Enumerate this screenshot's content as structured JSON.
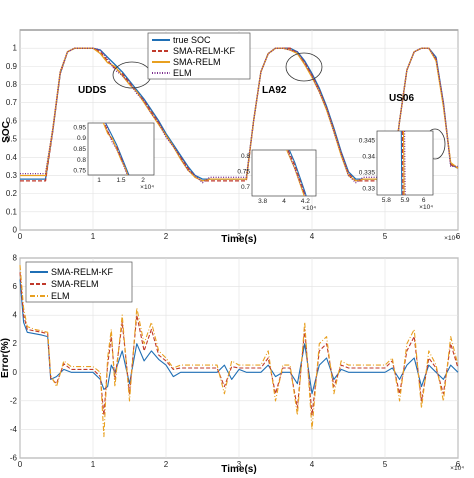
{
  "chart_data": [
    {
      "type": "line",
      "title": "",
      "xlabel": "Time(s)",
      "ylabel": "SOC",
      "x_multiplier": "×10⁴",
      "xlim": [
        0,
        6
      ],
      "ylim": [
        0,
        1.1
      ],
      "xticks": [
        "0",
        "1",
        "2",
        "3",
        "4",
        "5",
        "6"
      ],
      "yticks": [
        "0",
        "0.1",
        "0.2",
        "0.3",
        "0.4",
        "0.5",
        "0.6",
        "0.7",
        "0.8",
        "0.9",
        "1"
      ],
      "grid": true,
      "legend_position": "top-center",
      "series": [
        {
          "name": "true SOC",
          "color": "#1f6fb5",
          "style": "solid",
          "x": [
            0,
            0.2,
            0.35,
            0.45,
            0.55,
            0.65,
            0.75,
            0.85,
            0.95,
            1.0,
            1.1,
            1.2,
            1.3,
            1.4,
            1.5,
            1.6,
            1.7,
            1.8,
            1.9,
            2.0,
            2.1,
            2.2,
            2.3,
            2.4,
            2.5,
            2.6,
            2.7,
            2.8,
            2.95,
            3.1,
            3.2,
            3.3,
            3.4,
            3.5,
            3.6,
            3.7,
            3.8,
            3.9,
            4.0,
            4.1,
            4.2,
            4.3,
            4.4,
            4.5,
            4.6,
            4.7,
            4.8,
            4.9,
            5.0,
            5.1,
            5.2,
            5.3,
            5.4,
            5.5,
            5.6,
            5.7,
            5.8,
            5.9,
            6.0
          ],
          "y": [
            0.28,
            0.28,
            0.28,
            0.55,
            0.86,
            0.98,
            1.0,
            1.0,
            1.0,
            1.0,
            0.99,
            0.95,
            0.91,
            0.87,
            0.82,
            0.77,
            0.72,
            0.66,
            0.6,
            0.53,
            0.47,
            0.41,
            0.35,
            0.3,
            0.28,
            0.28,
            0.28,
            0.28,
            0.28,
            0.28,
            0.6,
            0.87,
            0.97,
            1.0,
            1.0,
            1.0,
            0.98,
            0.93,
            0.86,
            0.78,
            0.68,
            0.56,
            0.43,
            0.32,
            0.28,
            0.28,
            0.28,
            0.28,
            0.28,
            0.28,
            0.6,
            0.88,
            0.98,
            1.0,
            1.0,
            0.95,
            0.7,
            0.36,
            0.34
          ]
        },
        {
          "name": "SMA-RELM-KF",
          "color": "#c0392b",
          "style": "dashed",
          "x": [
            0,
            0.2,
            0.35,
            0.45,
            0.55,
            0.65,
            0.75,
            0.85,
            0.95,
            1.0,
            1.1,
            1.2,
            1.3,
            1.4,
            1.5,
            1.6,
            1.7,
            1.8,
            1.9,
            2.0,
            2.1,
            2.2,
            2.3,
            2.4,
            2.5,
            2.6,
            2.7,
            2.8,
            2.95,
            3.1,
            3.2,
            3.3,
            3.4,
            3.5,
            3.6,
            3.7,
            3.8,
            3.9,
            4.0,
            4.1,
            4.2,
            4.3,
            4.4,
            4.5,
            4.6,
            4.7,
            4.8,
            4.9,
            5.0,
            5.1,
            5.2,
            5.3,
            5.4,
            5.5,
            5.6,
            5.7,
            5.8,
            5.9,
            6.0
          ],
          "y": [
            0.27,
            0.27,
            0.27,
            0.55,
            0.86,
            0.98,
            1.0,
            1.0,
            1.0,
            1.0,
            0.98,
            0.93,
            0.89,
            0.86,
            0.81,
            0.76,
            0.71,
            0.65,
            0.59,
            0.52,
            0.46,
            0.4,
            0.34,
            0.29,
            0.27,
            0.27,
            0.27,
            0.27,
            0.27,
            0.27,
            0.6,
            0.87,
            0.97,
            1.0,
            1.0,
            1.0,
            0.97,
            0.92,
            0.85,
            0.77,
            0.67,
            0.55,
            0.42,
            0.31,
            0.27,
            0.27,
            0.27,
            0.27,
            0.27,
            0.27,
            0.6,
            0.88,
            0.98,
            1.0,
            1.0,
            0.94,
            0.69,
            0.36,
            0.34
          ]
        },
        {
          "name": "SMA-RELM",
          "color": "#e8a020",
          "style": "solid",
          "x": [
            0,
            0.2,
            0.35,
            0.45,
            0.55,
            0.65,
            0.75,
            0.85,
            0.95,
            1.0,
            1.1,
            1.2,
            1.3,
            1.4,
            1.5,
            1.6,
            1.7,
            1.8,
            1.9,
            2.0,
            2.1,
            2.2,
            2.3,
            2.4,
            2.5,
            2.6,
            2.7,
            2.8,
            2.95,
            3.1,
            3.2,
            3.3,
            3.4,
            3.5,
            3.6,
            3.7,
            3.8,
            3.9,
            4.0,
            4.1,
            4.2,
            4.3,
            4.4,
            4.5,
            4.6,
            4.7,
            4.8,
            4.9,
            5.0,
            5.1,
            5.2,
            5.3,
            5.4,
            5.5,
            5.6,
            5.7,
            5.8,
            5.9,
            6.0
          ],
          "y": [
            0.3,
            0.3,
            0.3,
            0.56,
            0.87,
            0.98,
            1.0,
            1.0,
            1.0,
            1.0,
            0.97,
            0.92,
            0.9,
            0.85,
            0.8,
            0.76,
            0.7,
            0.64,
            0.58,
            0.52,
            0.46,
            0.39,
            0.33,
            0.29,
            0.27,
            0.28,
            0.28,
            0.28,
            0.28,
            0.28,
            0.6,
            0.87,
            0.97,
            1.0,
            1.0,
            0.99,
            0.97,
            0.91,
            0.84,
            0.76,
            0.66,
            0.54,
            0.41,
            0.3,
            0.27,
            0.28,
            0.28,
            0.28,
            0.28,
            0.28,
            0.6,
            0.88,
            0.98,
            1.0,
            1.0,
            0.93,
            0.68,
            0.37,
            0.34
          ]
        },
        {
          "name": "ELM",
          "color": "#7b2d8e",
          "style": "dotted",
          "x": [
            0,
            0.2,
            0.35,
            0.45,
            0.55,
            0.65,
            0.75,
            0.85,
            0.95,
            1.0,
            1.1,
            1.2,
            1.3,
            1.4,
            1.5,
            1.6,
            1.7,
            1.8,
            1.9,
            2.0,
            2.1,
            2.2,
            2.3,
            2.4,
            2.5,
            2.6,
            2.7,
            2.8,
            2.95,
            3.1,
            3.2,
            3.3,
            3.4,
            3.5,
            3.6,
            3.7,
            3.8,
            3.9,
            4.0,
            4.1,
            4.2,
            4.3,
            4.4,
            4.5,
            4.6,
            4.7,
            4.8,
            4.9,
            5.0,
            5.1,
            5.2,
            5.3,
            5.4,
            5.5,
            5.6,
            5.7,
            5.8,
            5.9,
            6.0
          ],
          "y": [
            0.31,
            0.31,
            0.31,
            0.56,
            0.87,
            0.98,
            1.0,
            1.0,
            1.0,
            1.0,
            0.99,
            0.94,
            0.88,
            0.85,
            0.81,
            0.75,
            0.71,
            0.64,
            0.59,
            0.51,
            0.46,
            0.4,
            0.33,
            0.3,
            0.26,
            0.29,
            0.29,
            0.29,
            0.29,
            0.29,
            0.6,
            0.87,
            0.97,
            1.0,
            1.0,
            0.99,
            0.98,
            0.92,
            0.85,
            0.76,
            0.67,
            0.54,
            0.42,
            0.3,
            0.26,
            0.29,
            0.29,
            0.29,
            0.29,
            0.29,
            0.6,
            0.88,
            0.98,
            1.0,
            1.0,
            0.94,
            0.7,
            0.35,
            0.35
          ]
        }
      ],
      "annotations": [
        "UDDS",
        "LA92",
        "US06"
      ],
      "insets": [
        {
          "xticks": [
            "1",
            "1.5",
            "2"
          ],
          "yticks": [
            "0.75",
            "0.8",
            "0.85",
            "0.9",
            "0.95"
          ],
          "x_multiplier": "×10⁴",
          "xlim": [
            0.75,
            2.25
          ],
          "ylim": [
            0.73,
            0.97
          ]
        },
        {
          "xticks": [
            "3.8",
            "4",
            "4.2"
          ],
          "yticks": [
            "0.7",
            "0.75",
            "0.8"
          ],
          "x_multiplier": "×10⁴",
          "xlim": [
            3.7,
            4.3
          ],
          "ylim": [
            0.67,
            0.82
          ]
        },
        {
          "xticks": [
            "5.8",
            "5.9",
            "6"
          ],
          "yticks": [
            "0.33",
            "0.335",
            "0.34",
            "0.345"
          ],
          "x_multiplier": "×10⁴",
          "xlim": [
            5.75,
            6.05
          ],
          "ylim": [
            0.328,
            0.348
          ]
        }
      ]
    },
    {
      "type": "line",
      "title": "",
      "xlabel": "Time(s)",
      "ylabel": "Error(%)",
      "x_multiplier": "×10⁴",
      "xlim": [
        0,
        6
      ],
      "ylim": [
        -6,
        8
      ],
      "xticks": [
        "0",
        "1",
        "2",
        "3",
        "4",
        "5",
        "6"
      ],
      "yticks": [
        "-6",
        "-4",
        "-2",
        "0",
        "2",
        "4",
        "6",
        "8"
      ],
      "grid": true,
      "legend_position": "top-left",
      "series": [
        {
          "name": "SMA-RELM-KF",
          "color": "#1f6fb5",
          "style": "solid",
          "x": [
            0,
            0.05,
            0.1,
            0.2,
            0.3,
            0.38,
            0.42,
            0.5,
            0.6,
            0.7,
            0.8,
            0.9,
            1.0,
            1.1,
            1.15,
            1.2,
            1.25,
            1.3,
            1.4,
            1.5,
            1.6,
            1.7,
            1.8,
            1.9,
            2.0,
            2.1,
            2.2,
            2.3,
            2.4,
            2.5,
            2.6,
            2.7,
            2.8,
            2.9,
            3.0,
            3.1,
            3.2,
            3.3,
            3.4,
            3.5,
            3.6,
            3.7,
            3.8,
            3.9,
            4.0,
            4.1,
            4.2,
            4.3,
            4.4,
            4.5,
            4.6,
            4.7,
            4.8,
            4.9,
            5.0,
            5.1,
            5.2,
            5.3,
            5.4,
            5.5,
            5.6,
            5.7,
            5.8,
            5.9,
            6.0
          ],
          "y": [
            6.5,
            3.5,
            2.8,
            2.7,
            2.6,
            2.5,
            -0.5,
            -0.3,
            0.2,
            0.0,
            0.0,
            0.0,
            0.0,
            -0.5,
            -1.2,
            -1.0,
            0.5,
            0.0,
            1.5,
            -0.8,
            2.0,
            0.8,
            1.5,
            0.9,
            0.5,
            -0.3,
            0.0,
            0.0,
            0.0,
            0.0,
            0.0,
            0.0,
            0.5,
            -0.5,
            0.2,
            0.0,
            0.0,
            0.0,
            0.5,
            -0.3,
            0.0,
            0.0,
            -0.8,
            2.0,
            -1.5,
            0.5,
            1.0,
            -0.5,
            0.2,
            0.0,
            0.0,
            0.0,
            0.0,
            0.0,
            0.0,
            0.3,
            -0.5,
            0.5,
            1.0,
            -1.0,
            0.5,
            0.0,
            -0.5,
            0.5,
            0.0
          ]
        },
        {
          "name": "SMA-RELM",
          "color": "#c0392b",
          "style": "dashed",
          "x": [
            0,
            0.05,
            0.1,
            0.2,
            0.3,
            0.38,
            0.42,
            0.5,
            0.6,
            0.7,
            0.8,
            0.9,
            1.0,
            1.1,
            1.15,
            1.2,
            1.25,
            1.3,
            1.4,
            1.5,
            1.6,
            1.7,
            1.8,
            1.9,
            2.0,
            2.1,
            2.2,
            2.3,
            2.4,
            2.5,
            2.6,
            2.7,
            2.8,
            2.9,
            3.0,
            3.1,
            3.2,
            3.3,
            3.4,
            3.5,
            3.6,
            3.7,
            3.8,
            3.9,
            4.0,
            4.1,
            4.2,
            4.3,
            4.4,
            4.5,
            4.6,
            4.7,
            4.8,
            4.9,
            5.0,
            5.1,
            5.2,
            5.3,
            5.4,
            5.5,
            5.6,
            5.7,
            5.8,
            5.9,
            6.0
          ],
          "y": [
            7.0,
            4.0,
            3.0,
            2.9,
            2.8,
            2.7,
            -0.4,
            -0.8,
            0.6,
            0.2,
            0.2,
            0.2,
            0.2,
            -0.3,
            -3.0,
            0.5,
            2.5,
            -0.5,
            3.5,
            -1.5,
            4.0,
            1.5,
            3.0,
            1.2,
            0.8,
            0.2,
            0.3,
            0.3,
            0.3,
            0.3,
            0.3,
            0.3,
            -1.0,
            0.4,
            0.3,
            0.3,
            0.3,
            0.3,
            1.0,
            -1.5,
            0.3,
            0.3,
            -2.5,
            3.0,
            -3.0,
            1.5,
            2.0,
            -1.0,
            0.5,
            0.3,
            0.3,
            0.3,
            0.3,
            0.3,
            0.3,
            0.8,
            -1.5,
            1.5,
            2.5,
            -2.0,
            1.0,
            0.3,
            -1.5,
            2.0,
            0.3
          ]
        },
        {
          "name": "ELM",
          "color": "#e8a020",
          "style": "dash-dot",
          "x": [
            0,
            0.05,
            0.1,
            0.2,
            0.3,
            0.38,
            0.42,
            0.5,
            0.6,
            0.7,
            0.8,
            0.9,
            1.0,
            1.1,
            1.15,
            1.2,
            1.25,
            1.3,
            1.4,
            1.5,
            1.6,
            1.7,
            1.8,
            1.9,
            2.0,
            2.1,
            2.2,
            2.3,
            2.4,
            2.5,
            2.6,
            2.7,
            2.8,
            2.9,
            3.0,
            3.1,
            3.2,
            3.3,
            3.4,
            3.5,
            3.6,
            3.7,
            3.8,
            3.9,
            4.0,
            4.1,
            4.2,
            4.3,
            4.4,
            4.5,
            4.6,
            4.7,
            4.8,
            4.9,
            5.0,
            5.1,
            5.2,
            5.3,
            5.4,
            5.5,
            5.6,
            5.7,
            5.8,
            5.9,
            6.0
          ],
          "y": [
            7.5,
            4.5,
            3.2,
            3.0,
            2.9,
            2.8,
            -0.2,
            -1.0,
            0.8,
            0.4,
            0.4,
            0.4,
            0.4,
            0.0,
            -4.5,
            1.0,
            3.0,
            -1.0,
            4.0,
            -2.0,
            4.5,
            2.0,
            3.5,
            1.5,
            1.0,
            0.3,
            0.5,
            0.5,
            0.5,
            0.5,
            0.5,
            0.5,
            -1.5,
            0.8,
            0.5,
            0.5,
            0.5,
            0.5,
            1.5,
            -2.0,
            0.5,
            0.5,
            -3.0,
            3.5,
            -4.0,
            2.0,
            2.5,
            -1.5,
            0.8,
            0.5,
            0.5,
            0.5,
            0.5,
            0.5,
            0.5,
            1.0,
            -2.0,
            2.0,
            3.0,
            -2.5,
            1.5,
            0.5,
            -2.0,
            2.5,
            0.5
          ]
        }
      ]
    }
  ]
}
